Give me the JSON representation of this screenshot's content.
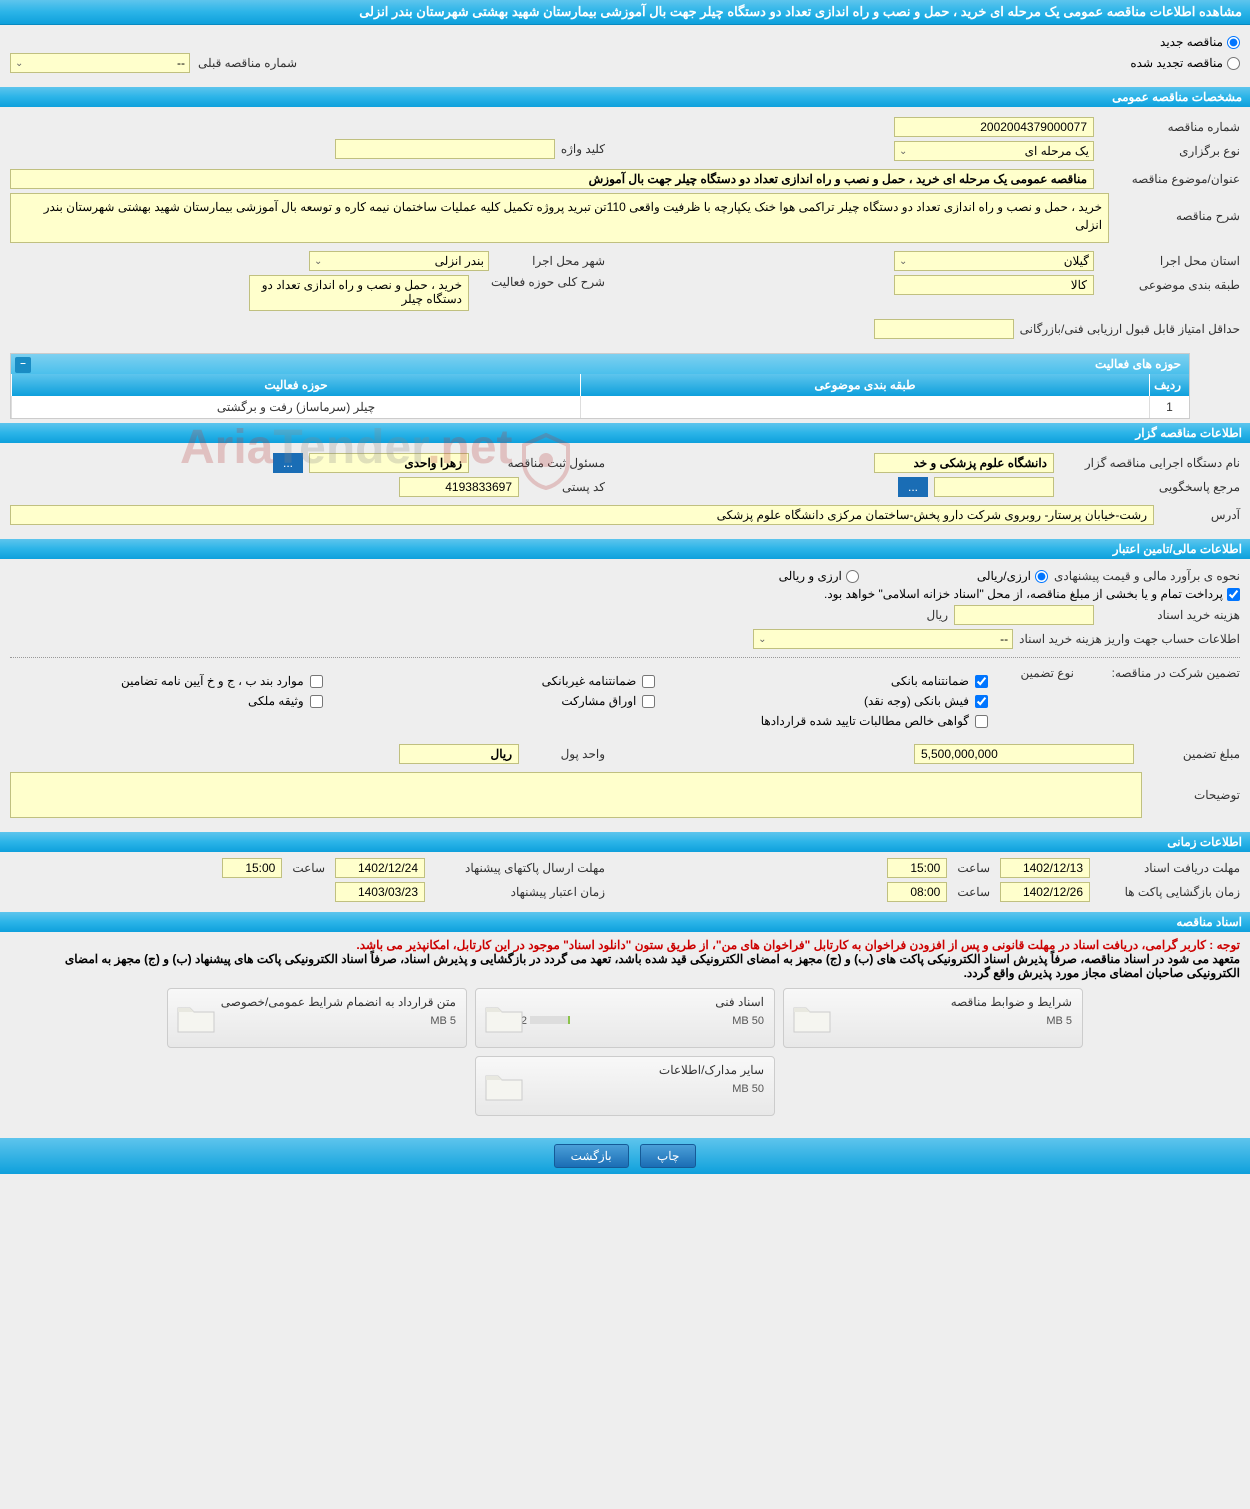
{
  "page_title": "مشاهده اطلاعات مناقصه عمومی یک مرحله ای خرید ، حمل و نصب و راه اندازی تعداد دو دستگاه چیلر جهت بال آموزشی بیمارستان شهید بهشتی شهرستان بندر انزلی",
  "radio_options": {
    "new_tender": "مناقصه جدید",
    "renewed_tender": "مناقصه تجدید شده"
  },
  "prev_number_label": "شماره مناقصه قبلی",
  "prev_number_value": "--",
  "sections": {
    "general": "مشخصات مناقصه عمومی",
    "holder": "اطلاعات مناقصه گزار",
    "financial": "اطلاعات مالی/تامین اعتبار",
    "timing": "اطلاعات زمانی",
    "documents": "اسناد مناقصه"
  },
  "general": {
    "tender_number_label": "شماره مناقصه",
    "tender_number": "2002004379000077",
    "holding_type_label": "نوع برگزاری",
    "holding_type": "یک مرحله ای",
    "keyword_label": "کلید واژه",
    "keyword": "",
    "subject_label": "عنوان/موضوع مناقصه",
    "subject": "مناقصه عمومی یک مرحله ای خرید ، حمل و نصب و راه اندازی  تعداد دو دستگاه چیلر  جهت بال آموزش",
    "description_label": "شرح مناقصه",
    "description": "خرید ، حمل و نصب و راه اندازی  تعداد دو دستگاه چیلر تراکمی هوا خنک یکپارچه با ظرفیت واقعی 110تن تبرید پروژه تکمیل کلیه عملیات ساختمان نیمه کاره و توسعه بال آموزشی بیمارستان شهید بهشتی شهرستان بندر انزلی",
    "exec_province_label": "استان محل اجرا",
    "exec_province": "گیلان",
    "exec_city_label": "شهر محل اجرا",
    "exec_city": "بندر انزلی",
    "category_label": "طبقه بندی موضوعی",
    "category": "کالا",
    "activity_desc_label": "شرح کلی حوزه فعالیت",
    "activity_desc": "خرید ، حمل و نصب و راه اندازی  تعداد دو دستگاه چیلر",
    "min_score_label": "حداقل امتیاز قابل قبول ارزیابی فنی/بازرگانی",
    "min_score": ""
  },
  "activity_table": {
    "title": "حوزه های فعالیت",
    "cols": {
      "idx": "ردیف",
      "category": "طبقه بندی موضوعی",
      "area": "حوزه فعالیت"
    },
    "rows": [
      {
        "idx": "1",
        "category": "",
        "area": "چیلر (سرماساز) رفت و برگشتی"
      }
    ]
  },
  "holder": {
    "org_label": "نام دستگاه اجرایی مناقصه گزار",
    "org": "دانشگاه علوم پزشکی و خد",
    "responsible_label": "مسئول ثبت مناقصه",
    "responsible": "زهرا واحدی",
    "responder_label": "مرجع پاسخگویی",
    "responder": "",
    "postal_label": "کد پستی",
    "postal": "4193833697",
    "address_label": "آدرس",
    "address": "رشت-خیابان پرستار- روبروی شرکت دارو پخش-ساختمان مرکزی دانشگاه علوم پزشکی"
  },
  "financial": {
    "estimate_label": "نحوه ی برآورد مالی و قیمت پیشنهادی",
    "opt_rial": "ارزی/ریالی",
    "opt_currency": "ارزی و ریالی",
    "treasury_note": "پرداخت تمام و یا بخشی از مبلغ مناقصه، از محل \"اسناد خزانه اسلامی\" خواهد بود.",
    "doc_fee_label": "هزینه خرید اسناد",
    "doc_fee": "",
    "rial_unit": "ریال",
    "account_label": "اطلاعات حساب جهت واریز هزینه خرید اسناد",
    "account_value": "--",
    "guarantee_label": "تضمین شرکت در مناقصه:",
    "guarantee_type_label": "نوع تضمین",
    "gt_bank": "ضمانتنامه بانکی",
    "gt_nonbank": "ضمانتنامه غیربانکی",
    "gt_bylaws": "موارد بند ب ، ج و خ آیین نامه تضامین",
    "gt_cash": "فیش بانکی (وجه نقد)",
    "gt_bonds": "اوراق مشارکت",
    "gt_property": "وثیقه ملکی",
    "gt_cert": "گواهی خالص مطالبات تایید شده قراردادها",
    "amount_label": "مبلغ تضمین",
    "amount": "5,500,000,000",
    "unit_label": "واحد پول",
    "unit": "ریال",
    "notes_label": "توضیحات",
    "notes": ""
  },
  "timing": {
    "receive_label": "مهلت دریافت اسناد",
    "receive_date": "1402/12/13",
    "receive_time": "15:00",
    "send_label": "مهلت ارسال پاکتهای پیشنهاد",
    "send_date": "1402/12/24",
    "send_time": "15:00",
    "open_label": "زمان بازگشایی پاکت ها",
    "open_date": "1402/12/26",
    "open_time": "08:00",
    "validity_label": "زمان اعتبار پیشنهاد",
    "validity_date": "1403/03/23",
    "time_word": "ساعت"
  },
  "docs": {
    "note1": "توجه : کاربر گرامی، دریافت اسناد در مهلت قانونی و پس از افزودن فراخوان به کارتابل \"فراخوان های من\"، از طریق ستون \"دانلود اسناد\" موجود در این کارتابل، امکانپذیر می باشد.",
    "note2": "متعهد می شود در اسناد مناقصه، صرفاً پذیرش اسناد الکترونیکی پاکت های (ب) و (ج) مجهز به امضای الکترونیکی قید شده باشد، تعهد می گردد در بازگشایی و پذیرش اسناد، صرفاً اسناد الکترونیکی پاکت های پیشنهاد (ب) و (ج) مجهز به امضای الکترونیکی صاحبان امضای مجاز مورد پذیرش واقع گردد.",
    "cards": [
      {
        "title": "شرایط و ضوابط مناقصه",
        "cap": "5 MB",
        "used": "0 MB",
        "pct": 0
      },
      {
        "title": "اسناد فنی",
        "cap": "50 MB",
        "used": "2.32 MB",
        "pct": 5
      },
      {
        "title": "متن قرارداد به انضمام شرایط عمومی/خصوصی",
        "cap": "5 MB",
        "used": "0 MB",
        "pct": 0
      },
      {
        "title": "سایر مدارک/اطلاعات",
        "cap": "50 MB",
        "used": "0 MB",
        "pct": 0
      }
    ]
  },
  "buttons": {
    "print": "چاپ",
    "back": "بازگشت",
    "dots": "..."
  },
  "colors": {
    "header_grad_top": "#5ec5ed",
    "header_grad_bottom": "#0ea0dc",
    "yellow_bg": "#ffffcc",
    "page_bg": "#eeeeee"
  }
}
